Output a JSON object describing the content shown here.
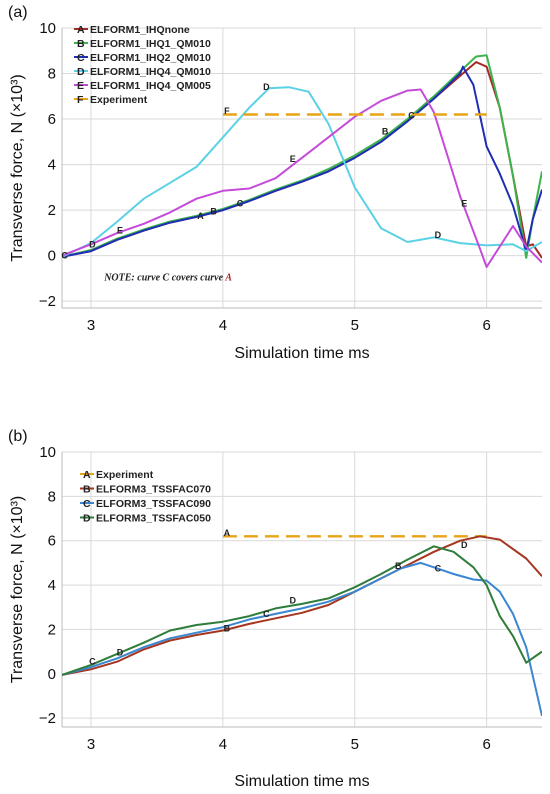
{
  "chart_data": [
    {
      "type": "line",
      "panel_label": "(a)",
      "xlabel": "Simulation time ms",
      "ylabel": "Transverse force, N (×10³)",
      "xlim": [
        2.78,
        6.42
      ],
      "ylim": [
        -2.3,
        10
      ],
      "xticks": [
        3,
        4,
        5,
        6
      ],
      "yticks": [
        -2,
        0,
        2,
        4,
        6,
        8,
        10
      ],
      "grid": true,
      "legend_position": "top-left",
      "note": {
        "prefix": "NOTE",
        "text": ": curve C covers curve ",
        "accent": "A",
        "x": 3.1,
        "y": -1.1
      },
      "series": [
        {
          "name": "ELFORM1_IHQnone",
          "marker": "A",
          "color": "#a52a2a",
          "points": [
            [
              2.78,
              -0.05
            ],
            [
              3.0,
              0.2
            ],
            [
              3.2,
              0.7
            ],
            [
              3.4,
              1.1
            ],
            [
              3.6,
              1.45
            ],
            [
              3.8,
              1.7
            ],
            [
              4.0,
              2.0
            ],
            [
              4.2,
              2.4
            ],
            [
              4.4,
              2.85
            ],
            [
              4.6,
              3.25
            ],
            [
              4.8,
              3.7
            ],
            [
              5.0,
              4.3
            ],
            [
              5.2,
              5.0
            ],
            [
              5.4,
              5.9
            ],
            [
              5.6,
              6.9
            ],
            [
              5.8,
              7.9
            ],
            [
              5.92,
              8.5
            ],
            [
              6.0,
              8.3
            ],
            [
              6.1,
              6.5
            ],
            [
              6.2,
              3.5
            ],
            [
              6.3,
              0.4
            ],
            [
              6.35,
              0.5
            ],
            [
              6.42,
              -0.1
            ]
          ],
          "label_points": [
            [
              3.83,
              1.75
            ]
          ]
        },
        {
          "name": "ELFORM1_IHQ1_QM010",
          "marker": "B",
          "color": "#3cb44b",
          "points": [
            [
              2.78,
              -0.05
            ],
            [
              3.0,
              0.25
            ],
            [
              3.2,
              0.75
            ],
            [
              3.4,
              1.15
            ],
            [
              3.6,
              1.5
            ],
            [
              3.8,
              1.75
            ],
            [
              4.0,
              2.05
            ],
            [
              4.2,
              2.45
            ],
            [
              4.4,
              2.9
            ],
            [
              4.6,
              3.3
            ],
            [
              4.8,
              3.8
            ],
            [
              5.0,
              4.4
            ],
            [
              5.2,
              5.1
            ],
            [
              5.4,
              6.0
            ],
            [
              5.6,
              7.0
            ],
            [
              5.8,
              8.1
            ],
            [
              5.92,
              8.75
            ],
            [
              6.0,
              8.8
            ],
            [
              6.1,
              6.5
            ],
            [
              6.2,
              3.5
            ],
            [
              6.3,
              -0.1
            ],
            [
              6.35,
              1.6
            ],
            [
              6.42,
              3.7
            ]
          ],
          "label_points": [
            [
              3.93,
              1.95
            ],
            [
              5.23,
              5.45
            ]
          ]
        },
        {
          "name": "ELFORM1_IHQ2_QM010",
          "marker": "C",
          "color": "#1f2fb5",
          "points": [
            [
              2.78,
              -0.05
            ],
            [
              3.0,
              0.2
            ],
            [
              3.2,
              0.7
            ],
            [
              3.4,
              1.1
            ],
            [
              3.6,
              1.45
            ],
            [
              3.8,
              1.7
            ],
            [
              4.0,
              2.0
            ],
            [
              4.2,
              2.4
            ],
            [
              4.4,
              2.85
            ],
            [
              4.6,
              3.25
            ],
            [
              4.8,
              3.7
            ],
            [
              5.0,
              4.3
            ],
            [
              5.2,
              5.0
            ],
            [
              5.4,
              5.9
            ],
            [
              5.6,
              6.9
            ],
            [
              5.8,
              8.0
            ],
            [
              5.82,
              8.3
            ],
            [
              5.9,
              7.5
            ],
            [
              6.0,
              4.8
            ],
            [
              6.1,
              3.6
            ],
            [
              6.2,
              2.2
            ],
            [
              6.3,
              0.2
            ],
            [
              6.35,
              1.6
            ],
            [
              6.42,
              2.9
            ]
          ],
          "label_points": [
            [
              2.8,
              0.0
            ],
            [
              4.13,
              2.3
            ],
            [
              5.43,
              6.15
            ]
          ]
        },
        {
          "name": "ELFORM1_IHQ4_QM010",
          "marker": "D",
          "color": "#5bd1e6",
          "points": [
            [
              2.78,
              -0.05
            ],
            [
              3.0,
              0.55
            ],
            [
              3.2,
              1.5
            ],
            [
              3.4,
              2.5
            ],
            [
              3.6,
              3.2
            ],
            [
              3.8,
              3.9
            ],
            [
              4.0,
              5.2
            ],
            [
              4.2,
              6.5
            ],
            [
              4.35,
              7.35
            ],
            [
              4.5,
              7.4
            ],
            [
              4.65,
              7.2
            ],
            [
              4.8,
              5.8
            ],
            [
              5.0,
              3.0
            ],
            [
              5.2,
              1.2
            ],
            [
              5.4,
              0.6
            ],
            [
              5.6,
              0.8
            ],
            [
              5.8,
              0.55
            ],
            [
              6.0,
              0.45
            ],
            [
              6.2,
              0.5
            ],
            [
              6.3,
              0.2
            ],
            [
              6.42,
              0.6
            ]
          ],
          "label_points": [
            [
              3.01,
              0.5
            ],
            [
              4.33,
              7.4
            ],
            [
              5.63,
              0.9
            ]
          ]
        },
        {
          "name": "ELFORM1_IHQ4_QM005",
          "marker": "E",
          "color": "#c54bd9",
          "points": [
            [
              2.78,
              0.0
            ],
            [
              3.0,
              0.5
            ],
            [
              3.2,
              1.0
            ],
            [
              3.4,
              1.4
            ],
            [
              3.6,
              1.9
            ],
            [
              3.8,
              2.5
            ],
            [
              4.0,
              2.85
            ],
            [
              4.2,
              2.95
            ],
            [
              4.4,
              3.4
            ],
            [
              4.6,
              4.3
            ],
            [
              4.8,
              5.2
            ],
            [
              5.0,
              6.1
            ],
            [
              5.2,
              6.8
            ],
            [
              5.4,
              7.25
            ],
            [
              5.5,
              7.3
            ],
            [
              5.6,
              6.3
            ],
            [
              5.8,
              2.6
            ],
            [
              5.95,
              0.3
            ],
            [
              6.0,
              -0.5
            ],
            [
              6.1,
              0.4
            ],
            [
              6.2,
              1.3
            ],
            [
              6.3,
              0.4
            ],
            [
              6.42,
              -0.3
            ]
          ],
          "label_points": [
            [
              3.22,
              1.1
            ],
            [
              4.53,
              4.25
            ],
            [
              5.83,
              2.3
            ]
          ]
        },
        {
          "name": "Experiment",
          "marker": "F",
          "color": "#e8a317",
          "dashed": true,
          "points": [
            [
              4.0,
              6.2
            ],
            [
              6.0,
              6.2
            ]
          ],
          "label_points": [
            [
              4.03,
              6.35
            ]
          ]
        }
      ]
    },
    {
      "type": "line",
      "panel_label": "(b)",
      "xlabel": "Simulation time ms",
      "ylabel": "Transverse force, N (×10³)",
      "xlim": [
        2.78,
        6.42
      ],
      "ylim": [
        -2.4,
        10
      ],
      "xticks": [
        3,
        4,
        5,
        6
      ],
      "yticks": [
        -2,
        0,
        2,
        4,
        6,
        8,
        10
      ],
      "grid": true,
      "legend_position": "top-left",
      "series": [
        {
          "name": "Experiment",
          "marker": "A",
          "color": "#e8a317",
          "dashed": true,
          "points": [
            [
              4.0,
              6.2
            ],
            [
              6.0,
              6.2
            ]
          ],
          "label_points": [
            [
              4.03,
              6.35
            ]
          ]
        },
        {
          "name": "ELFORM3_TSSFAC070",
          "marker": "B",
          "color": "#a5361f",
          "points": [
            [
              2.78,
              -0.05
            ],
            [
              3.0,
              0.2
            ],
            [
              3.2,
              0.55
            ],
            [
              3.4,
              1.1
            ],
            [
              3.6,
              1.5
            ],
            [
              3.8,
              1.75
            ],
            [
              4.0,
              1.95
            ],
            [
              4.2,
              2.25
            ],
            [
              4.4,
              2.5
            ],
            [
              4.6,
              2.75
            ],
            [
              4.8,
              3.1
            ],
            [
              5.0,
              3.7
            ],
            [
              5.2,
              4.3
            ],
            [
              5.4,
              4.9
            ],
            [
              5.6,
              5.5
            ],
            [
              5.8,
              6.0
            ],
            [
              5.95,
              6.2
            ],
            [
              6.1,
              6.05
            ],
            [
              6.3,
              5.2
            ],
            [
              6.42,
              4.4
            ]
          ],
          "label_points": [
            [
              4.03,
              2.05
            ],
            [
              5.33,
              4.85
            ]
          ]
        },
        {
          "name": "ELFORM3_TSSFAC090",
          "marker": "C",
          "color": "#3a86d1",
          "points": [
            [
              2.78,
              -0.05
            ],
            [
              3.0,
              0.3
            ],
            [
              3.2,
              0.7
            ],
            [
              3.4,
              1.2
            ],
            [
              3.6,
              1.6
            ],
            [
              3.8,
              1.85
            ],
            [
              4.0,
              2.1
            ],
            [
              4.2,
              2.45
            ],
            [
              4.4,
              2.7
            ],
            [
              4.6,
              2.95
            ],
            [
              4.8,
              3.25
            ],
            [
              5.0,
              3.7
            ],
            [
              5.2,
              4.3
            ],
            [
              5.35,
              4.75
            ],
            [
              5.5,
              5.0
            ],
            [
              5.6,
              4.8
            ],
            [
              5.75,
              4.5
            ],
            [
              5.9,
              4.25
            ],
            [
              6.0,
              4.2
            ],
            [
              6.1,
              3.7
            ],
            [
              6.2,
              2.7
            ],
            [
              6.3,
              1.2
            ],
            [
              6.42,
              -1.9
            ]
          ],
          "label_points": [
            [
              3.01,
              0.55
            ],
            [
              4.33,
              2.7
            ],
            [
              5.63,
              4.75
            ]
          ]
        },
        {
          "name": "ELFORM3_TSSFAC050",
          "marker": "D",
          "color": "#2e7d3a",
          "points": [
            [
              2.78,
              -0.05
            ],
            [
              3.0,
              0.4
            ],
            [
              3.2,
              0.9
            ],
            [
              3.4,
              1.4
            ],
            [
              3.6,
              1.95
            ],
            [
              3.8,
              2.2
            ],
            [
              4.0,
              2.35
            ],
            [
              4.2,
              2.6
            ],
            [
              4.4,
              2.95
            ],
            [
              4.6,
              3.15
            ],
            [
              4.8,
              3.4
            ],
            [
              5.0,
              3.9
            ],
            [
              5.2,
              4.5
            ],
            [
              5.4,
              5.15
            ],
            [
              5.6,
              5.75
            ],
            [
              5.75,
              5.5
            ],
            [
              5.9,
              4.8
            ],
            [
              6.0,
              4.0
            ],
            [
              6.1,
              2.6
            ],
            [
              6.2,
              1.7
            ],
            [
              6.3,
              0.5
            ],
            [
              6.42,
              1.0
            ]
          ],
          "label_points": [
            [
              3.22,
              0.95
            ],
            [
              4.53,
              3.3
            ],
            [
              5.83,
              5.8
            ]
          ]
        }
      ]
    }
  ]
}
